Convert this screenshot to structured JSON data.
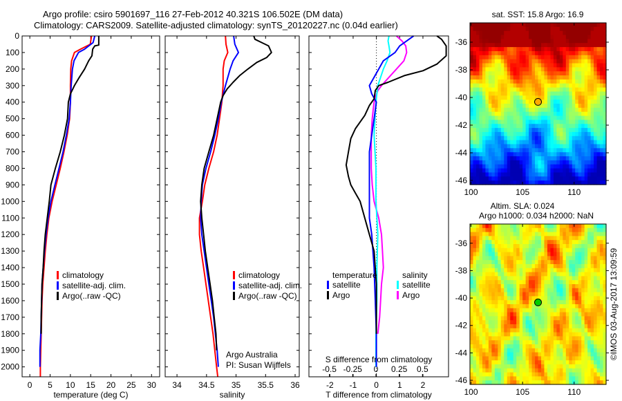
{
  "header": {
    "line1": "Argo profile: csiro 5901697_116 27-Feb-2012 40.321S 106.502E (DM data)",
    "line2": "Climatology: CARS2009. Satellite-adjusted climatology: synTS_20120227.nc (0.04d earlier)"
  },
  "colors": {
    "climatology": "#ff0000",
    "satellite": "#0000ff",
    "argo": "#000000",
    "sal_satellite": "#00ffff",
    "sal_argo": "#ff00ff"
  },
  "chart_data": [
    {
      "type": "line",
      "id": "temperature",
      "xlabel": "temperature (deg C)",
      "ylabel": "",
      "xlim": [
        -1.9,
        32
      ],
      "ylim": [
        2060,
        0
      ],
      "xticks": [
        0,
        5,
        10,
        15,
        20,
        25,
        30
      ],
      "yticks": [
        0,
        100,
        200,
        300,
        400,
        500,
        600,
        700,
        800,
        900,
        1000,
        1100,
        1200,
        1300,
        1400,
        1500,
        1600,
        1700,
        1800,
        1900,
        2000
      ],
      "legend": [
        "climatology",
        "satellite-adj. clim.",
        "Argo(..raw -QC)"
      ],
      "series": [
        {
          "name": "climatology",
          "depth": [
            0,
            50,
            80,
            100,
            150,
            200,
            300,
            400,
            500,
            600,
            700,
            800,
            900,
            1000,
            1100,
            1200,
            1300,
            1400,
            1500,
            1600,
            1700,
            1800,
            1900,
            2000,
            2060
          ],
          "values": [
            15.2,
            14.9,
            12.5,
            11.0,
            10.3,
            10.1,
            10.0,
            10.0,
            9.8,
            9.2,
            8.4,
            7.5,
            6.5,
            5.5,
            4.7,
            4.2,
            3.8,
            3.5,
            3.2,
            3.0,
            2.9,
            2.8,
            2.7,
            2.6,
            2.6
          ]
        },
        {
          "name": "satellite-adj. clim.",
          "depth": [
            0,
            40,
            80,
            100,
            150,
            200,
            300,
            400,
            500,
            600,
            700,
            800,
            900,
            1000,
            1100,
            1200,
            1300,
            1400,
            1500,
            1600,
            1700,
            1800,
            1900,
            2000
          ],
          "values": [
            16.0,
            15.6,
            13.5,
            12.0,
            10.9,
            10.5,
            10.2,
            10.0,
            9.7,
            9.0,
            8.2,
            7.2,
            6.2,
            5.2,
            4.5,
            4.0,
            3.6,
            3.3,
            3.0,
            2.9,
            2.8,
            2.7,
            2.5,
            2.5
          ]
        },
        {
          "name": "Argo(..raw -QC)",
          "depth": [
            0,
            55,
            60,
            80,
            120,
            150,
            200,
            250,
            300,
            350,
            400,
            500,
            600,
            700,
            800,
            900,
            950,
            1000,
            1100,
            1200,
            1300,
            1400,
            1500,
            1600,
            1700,
            1800
          ],
          "values": [
            17.0,
            17.0,
            16.0,
            15.5,
            15.3,
            14.5,
            13.5,
            12.2,
            11.0,
            10.0,
            9.5,
            9.3,
            8.5,
            7.5,
            6.3,
            5.2,
            5.0,
            4.8,
            4.3,
            3.8,
            3.5,
            3.3,
            3.0,
            2.9,
            2.8,
            2.8
          ]
        }
      ]
    },
    {
      "type": "line",
      "id": "salinity",
      "xlabel": "salinity",
      "xlim": [
        33.8,
        36.07
      ],
      "ylim": [
        2060,
        0
      ],
      "xticks": [
        34,
        34.5,
        35,
        35.5,
        36
      ],
      "legend": [
        "climatology",
        "satellite-adj. clim.",
        "Argo(..raw -QC)"
      ],
      "annotation": [
        "Argo Australia",
        "PI: Susan Wijffels"
      ],
      "series": [
        {
          "name": "climatology",
          "depth": [
            0,
            50,
            100,
            150,
            200,
            300,
            400,
            500,
            600,
            700,
            800,
            900,
            1000,
            1100,
            1200,
            1300,
            1400,
            1500,
            1600,
            1700,
            1800,
            1900,
            2000,
            2060
          ],
          "values": [
            34.82,
            34.83,
            34.86,
            34.8,
            34.78,
            34.78,
            34.76,
            34.72,
            34.68,
            34.62,
            34.54,
            34.47,
            34.43,
            34.38,
            34.38,
            34.41,
            34.45,
            34.49,
            34.53,
            34.57,
            34.61,
            34.64,
            34.67,
            34.69
          ]
        },
        {
          "name": "satellite-adj. clim.",
          "depth": [
            0,
            50,
            100,
            150,
            200,
            250,
            300,
            400,
            500,
            600,
            700,
            800,
            900,
            1000,
            1100,
            1200,
            1300,
            1400,
            1500,
            1600,
            1700,
            1800,
            1900,
            2000
          ],
          "values": [
            34.96,
            34.98,
            35.04,
            34.95,
            34.9,
            34.86,
            34.82,
            34.75,
            34.7,
            34.64,
            34.57,
            34.49,
            34.43,
            34.41,
            34.4,
            34.42,
            34.46,
            34.5,
            34.54,
            34.58,
            34.62,
            34.65,
            34.68,
            34.7
          ]
        },
        {
          "name": "Argo(..raw -QC)",
          "depth": [
            0,
            20,
            60,
            100,
            130,
            160,
            200,
            240,
            280,
            320,
            360,
            400,
            500,
            600,
            700,
            800,
            900,
            1000,
            1100,
            1200,
            1300,
            1400,
            1500,
            1600,
            1700,
            1800,
            1900
          ],
          "values": [
            35.3,
            35.32,
            35.55,
            35.6,
            35.52,
            35.35,
            35.2,
            35.06,
            34.95,
            34.85,
            34.78,
            34.74,
            34.68,
            34.62,
            34.54,
            34.46,
            34.42,
            34.4,
            34.42,
            34.45,
            34.48,
            34.52,
            34.56,
            34.6,
            34.63,
            34.66,
            34.67
          ]
        }
      ]
    },
    {
      "type": "line",
      "id": "difference",
      "xlabel": "T difference from climatology",
      "x2label": "S difference from climatology",
      "xlim": [
        -2.9,
        3.1
      ],
      "x2lim": [
        -0.72,
        0.78
      ],
      "ylim": [
        2060,
        0
      ],
      "xticks": [
        -2,
        -1,
        0,
        1,
        2
      ],
      "x2ticks": [
        -0.5,
        -0.25,
        0,
        0.25,
        0.5
      ],
      "x2ticklabels": [
        "-0.5",
        "-0.25",
        "0",
        "0.25",
        "0.5"
      ],
      "legend": {
        "temperature_title": "temperature",
        "salinity_title": "salinity",
        "items": [
          "satellite",
          "Argo",
          "satellite",
          "Argo"
        ]
      },
      "series": [
        {
          "name": "temperature satellite",
          "axis": "T",
          "depth": [
            0,
            20,
            60,
            100,
            150,
            200,
            250,
            300,
            350,
            400,
            500,
            600,
            700,
            800,
            900,
            1000,
            1100,
            1200,
            1400,
            1600,
            1800,
            2000
          ],
          "values": [
            1.6,
            1.4,
            1.0,
            0.8,
            0.3,
            0.1,
            -0.1,
            -0.3,
            -0.2,
            0.0,
            -0.1,
            -0.2,
            -0.3,
            -0.3,
            -0.3,
            -0.3,
            -0.3,
            -0.2,
            -0.1,
            -0.05,
            0.0,
            0.0
          ]
        },
        {
          "name": "temperature Argo",
          "axis": "T",
          "depth": [
            0,
            20,
            60,
            120,
            170,
            210,
            240,
            280,
            300,
            330,
            380,
            420,
            480,
            560,
            620,
            700,
            780,
            850,
            900,
            950,
            1000,
            1100,
            1200,
            1300,
            1500,
            1700,
            1800
          ],
          "values": [
            2.6,
            2.8,
            3.0,
            3.0,
            2.6,
            2.0,
            1.2,
            0.5,
            0.1,
            -0.05,
            -0.1,
            -0.3,
            -0.5,
            -0.9,
            -1.1,
            -1.2,
            -1.3,
            -1.2,
            -1.1,
            -0.9,
            -0.7,
            -0.5,
            -0.3,
            -0.1,
            0.0,
            0.0,
            0.0
          ]
        }
      ],
      "series_s": [
        {
          "name": "salinity satellite",
          "axis": "S",
          "depth": [
            0,
            30,
            60,
            100,
            150,
            200,
            250,
            300,
            350,
            400,
            500,
            600,
            700,
            800,
            900,
            1000,
            1200,
            1400,
            1600,
            1800,
            2000
          ],
          "values": [
            0.14,
            0.13,
            0.14,
            0.15,
            0.12,
            0.08,
            0.05,
            0.02,
            0.01,
            0.0,
            -0.01,
            -0.02,
            -0.01,
            0.0,
            0.0,
            0.0,
            0.02,
            0.01,
            0.01,
            0.0,
            0.0
          ]
        },
        {
          "name": "salinity Argo",
          "axis": "S",
          "depth": [
            0,
            30,
            60,
            100,
            150,
            200,
            250,
            300,
            330,
            360,
            400,
            450,
            500,
            600,
            700,
            800,
            900,
            1000,
            1100,
            1200,
            1300,
            1400,
            1500,
            1600,
            1700,
            1800
          ],
          "values": [
            0.22,
            0.28,
            0.32,
            0.33,
            0.3,
            0.22,
            0.14,
            0.06,
            0.02,
            0.0,
            -0.02,
            -0.03,
            -0.04,
            -0.05,
            -0.05,
            -0.05,
            -0.04,
            -0.02,
            0.03,
            0.06,
            0.07,
            0.08,
            0.06,
            0.05,
            0.04,
            0.02
          ]
        }
      ]
    },
    {
      "type": "heatmap",
      "id": "sst_map",
      "title": "sat. SST: 15.8 Argo: 16.9",
      "xlim": [
        99.9,
        113.1
      ],
      "ylim": [
        -46.3,
        -34.6
      ],
      "xticks": [
        100,
        105,
        110
      ],
      "yticks": [
        -36,
        -38,
        -40,
        -42,
        -44,
        -46
      ],
      "marker": {
        "lon": 106.5,
        "lat": -40.32
      }
    },
    {
      "type": "heatmap",
      "id": "sla_map",
      "title_line1": "Altim. SLA: 0.024",
      "title_line2": "Argo h1000: 0.034 h2000: NaN",
      "xlim": [
        99.9,
        113.1
      ],
      "ylim": [
        -46.3,
        -34.6
      ],
      "xticks": [
        100,
        105,
        110
      ],
      "yticks": [
        -36,
        -38,
        -40,
        -42,
        -44,
        -46
      ],
      "marker": {
        "lon": 106.5,
        "lat": -40.32
      }
    }
  ],
  "footer": {
    "credit": "©IMOS 03-Aug-2017 13:09:59"
  }
}
